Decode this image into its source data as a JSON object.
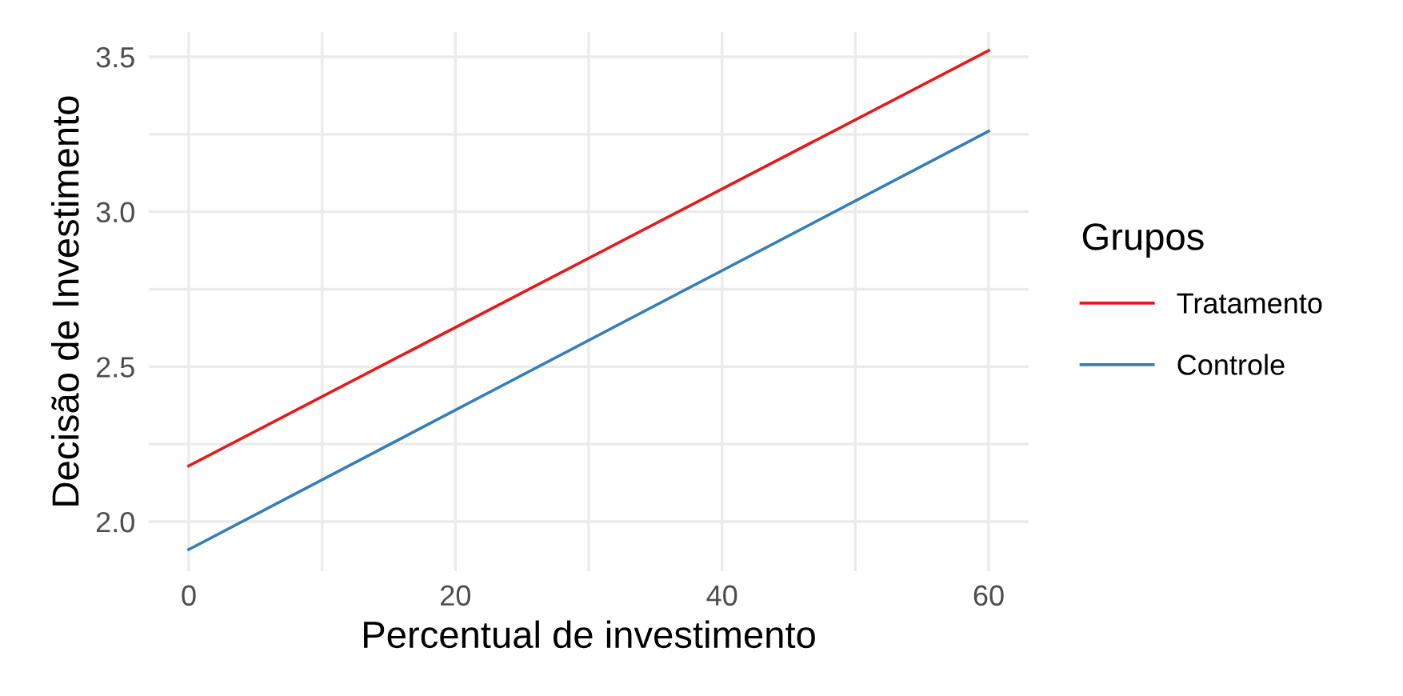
{
  "chart_data": {
    "type": "line",
    "xlabel": "Percentual de investimento",
    "ylabel": "Decisão de Investimento",
    "legend_title": "Grupos",
    "legend": "right",
    "grid": true,
    "line_style": "solid",
    "marker": "none",
    "x": [
      0,
      60
    ],
    "series": [
      {
        "name": "Tratamento",
        "color": "#e41a1c",
        "values": [
          2.18,
          3.52
        ]
      },
      {
        "name": "Controle",
        "color": "#377eb8",
        "values": [
          1.91,
          3.26
        ]
      }
    ],
    "xlim": [
      -3,
      63
    ],
    "ylim": [
      1.84,
      3.58
    ],
    "xticks": [
      0,
      {
        "value": 10,
        "label": null
      },
      20,
      {
        "value": 30,
        "label": null
      },
      40,
      {
        "value": 50,
        "label": null
      },
      60
    ],
    "yticks": [
      {
        "value": 2,
        "label": "2.0"
      },
      {
        "value": 2.25,
        "label": null
      },
      2.5,
      {
        "value": 2.75,
        "label": null
      },
      {
        "value": 3,
        "label": "3.0"
      },
      {
        "value": 3.25,
        "label": null
      },
      3.5
    ]
  }
}
